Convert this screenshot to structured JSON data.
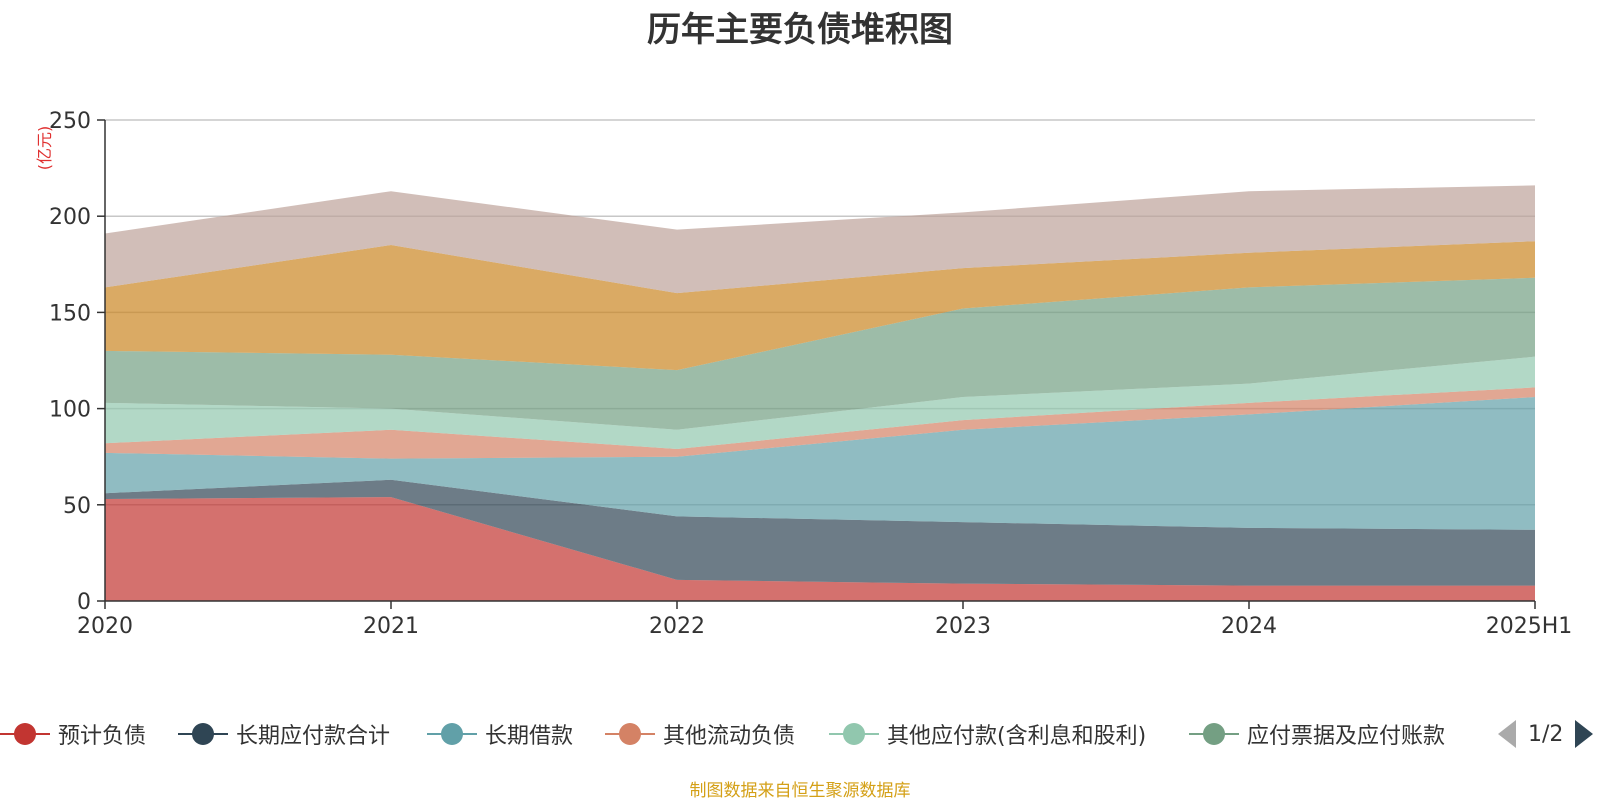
{
  "chart_data": {
    "type": "area",
    "stacked": true,
    "title": "历年主要负债堆积图",
    "unit_label": "(亿元)",
    "categories": [
      "2020",
      "2021",
      "2022",
      "2023",
      "2024",
      "2025H1"
    ],
    "y_ticks": [
      "0",
      "50",
      "100",
      "150",
      "200",
      "250"
    ],
    "ylim": [
      0,
      250
    ],
    "grid": true,
    "legend_position": "bottom",
    "series": [
      {
        "name": "预计负债",
        "color": "#c23531",
        "values": [
          53,
          54,
          11,
          9,
          8,
          8
        ]
      },
      {
        "name": "长期应付款合计",
        "color": "#2f4554",
        "values": [
          3,
          9,
          33,
          32,
          30,
          29
        ]
      },
      {
        "name": "长期借款",
        "color": "#61a0a8",
        "values": [
          21,
          11,
          31,
          48,
          59,
          69
        ]
      },
      {
        "name": "其他流动负债",
        "color": "#d48265",
        "values": [
          5,
          15,
          4,
          5,
          6,
          5
        ]
      },
      {
        "name": "其他应付款(含利息和股利)",
        "color": "#91c7ae",
        "values": [
          21,
          11,
          10,
          12,
          10,
          16
        ]
      },
      {
        "name": "应付票据及应付账款",
        "color": "#749f83",
        "values": [
          27,
          28,
          31,
          46,
          50,
          41
        ]
      },
      {
        "name": "",
        "color": "#ca8622",
        "values": [
          33,
          57,
          40,
          21,
          18,
          19
        ]
      },
      {
        "name": "",
        "color": "#bda29a",
        "values": [
          28,
          28,
          33,
          29,
          32,
          29
        ]
      }
    ]
  },
  "legend": {
    "items": [
      {
        "label": "预计负债",
        "color": "#c23531"
      },
      {
        "label": "长期应付款合计",
        "color": "#2f4554"
      },
      {
        "label": "长期借款",
        "color": "#61a0a8"
      },
      {
        "label": "其他流动负债",
        "color": "#d48265"
      },
      {
        "label": "其他应付款(含利息和股利)",
        "color": "#91c7ae"
      },
      {
        "label": "应付票据及应付账款",
        "color": "#749f83"
      }
    ],
    "page_text": "1/2"
  },
  "source_note": "制图数据来自恒生聚源数据库"
}
